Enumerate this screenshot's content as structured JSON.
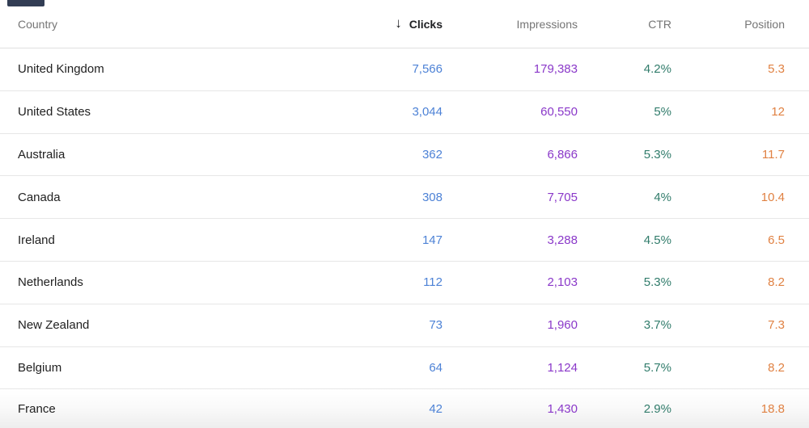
{
  "header": {
    "sort_icon": "↓",
    "columns": [
      {
        "key": "country",
        "label": "Country"
      },
      {
        "key": "clicks",
        "label": "Clicks",
        "sorted": "descending"
      },
      {
        "key": "impressions",
        "label": "Impressions"
      },
      {
        "key": "ctr",
        "label": "CTR"
      },
      {
        "key": "position",
        "label": "Position"
      }
    ]
  },
  "colors": {
    "clicks": "#4d82d6",
    "impressions": "#8a38c9",
    "ctr": "#317c6b",
    "position": "#e08142",
    "header_text": "#757575",
    "sorted_header_text": "#202124",
    "country_text": "#212121",
    "divider": "#e7e7e7"
  },
  "table": {
    "rows": [
      {
        "country": "United Kingdom",
        "clicks": "7,566",
        "impressions": "179,383",
        "ctr": "4.2%",
        "position": "5.3"
      },
      {
        "country": "United States",
        "clicks": "3,044",
        "impressions": "60,550",
        "ctr": "5%",
        "position": "12"
      },
      {
        "country": "Australia",
        "clicks": "362",
        "impressions": "6,866",
        "ctr": "5.3%",
        "position": "11.7"
      },
      {
        "country": "Canada",
        "clicks": "308",
        "impressions": "7,705",
        "ctr": "4%",
        "position": "10.4"
      },
      {
        "country": "Ireland",
        "clicks": "147",
        "impressions": "3,288",
        "ctr": "4.5%",
        "position": "6.5"
      },
      {
        "country": "Netherlands",
        "clicks": "112",
        "impressions": "2,103",
        "ctr": "5.3%",
        "position": "8.2"
      },
      {
        "country": "New Zealand",
        "clicks": "73",
        "impressions": "1,960",
        "ctr": "3.7%",
        "position": "7.3"
      },
      {
        "country": "Belgium",
        "clicks": "64",
        "impressions": "1,124",
        "ctr": "5.7%",
        "position": "8.2"
      },
      {
        "country": "France",
        "clicks": "42",
        "impressions": "1,430",
        "ctr": "2.9%",
        "position": "18.8"
      }
    ]
  }
}
